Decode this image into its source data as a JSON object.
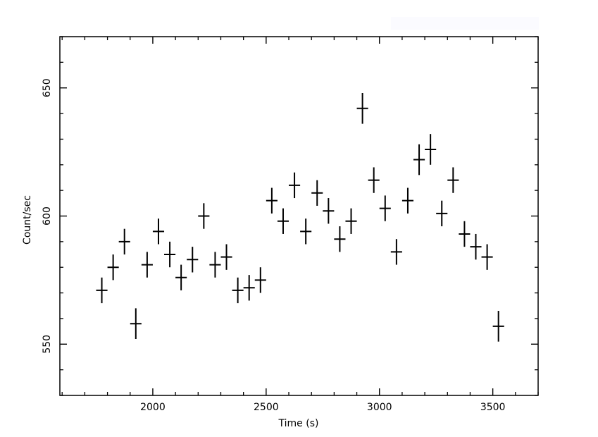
{
  "chart_data": {
    "type": "scatter",
    "title": "",
    "xlabel": "Time (s)",
    "ylabel": "Count/sec",
    "xlim": [
      1590,
      3700
    ],
    "ylim": [
      530,
      670
    ],
    "x_major_ticks": [
      2000,
      2500,
      3000,
      3500
    ],
    "x_tick_labels": [
      "2000",
      "2500",
      "3000",
      "3500"
    ],
    "x_minor_step": 100,
    "y_major_ticks": [
      550,
      600,
      650
    ],
    "y_tick_labels": [
      "550",
      "600",
      "650"
    ],
    "y_minor_step": 10,
    "grid": false,
    "legend": "none",
    "marker": "error-cross",
    "x_half_width": 25,
    "series": [
      {
        "points": [
          {
            "x": 1775,
            "y": 571,
            "err": 5
          },
          {
            "x": 1825,
            "y": 580,
            "err": 5
          },
          {
            "x": 1875,
            "y": 590,
            "err": 5
          },
          {
            "x": 1925,
            "y": 558,
            "err": 6
          },
          {
            "x": 1975,
            "y": 581,
            "err": 5
          },
          {
            "x": 2025,
            "y": 594,
            "err": 5
          },
          {
            "x": 2075,
            "y": 585,
            "err": 5
          },
          {
            "x": 2125,
            "y": 576,
            "err": 5
          },
          {
            "x": 2175,
            "y": 583,
            "err": 5
          },
          {
            "x": 2225,
            "y": 600,
            "err": 5
          },
          {
            "x": 2275,
            "y": 581,
            "err": 5
          },
          {
            "x": 2325,
            "y": 584,
            "err": 5
          },
          {
            "x": 2375,
            "y": 571,
            "err": 5
          },
          {
            "x": 2425,
            "y": 572,
            "err": 5
          },
          {
            "x": 2475,
            "y": 575,
            "err": 5
          },
          {
            "x": 2525,
            "y": 606,
            "err": 5
          },
          {
            "x": 2575,
            "y": 598,
            "err": 5
          },
          {
            "x": 2625,
            "y": 612,
            "err": 5
          },
          {
            "x": 2675,
            "y": 594,
            "err": 5
          },
          {
            "x": 2725,
            "y": 609,
            "err": 5
          },
          {
            "x": 2775,
            "y": 602,
            "err": 5
          },
          {
            "x": 2825,
            "y": 591,
            "err": 5
          },
          {
            "x": 2875,
            "y": 598,
            "err": 5
          },
          {
            "x": 2925,
            "y": 642,
            "err": 6
          },
          {
            "x": 2975,
            "y": 614,
            "err": 5
          },
          {
            "x": 3025,
            "y": 603,
            "err": 5
          },
          {
            "x": 3075,
            "y": 586,
            "err": 5
          },
          {
            "x": 3125,
            "y": 606,
            "err": 5
          },
          {
            "x": 3175,
            "y": 622,
            "err": 6
          },
          {
            "x": 3225,
            "y": 626,
            "err": 6
          },
          {
            "x": 3275,
            "y": 601,
            "err": 5
          },
          {
            "x": 3325,
            "y": 614,
            "err": 5
          },
          {
            "x": 3375,
            "y": 593,
            "err": 5
          },
          {
            "x": 3425,
            "y": 588,
            "err": 5
          },
          {
            "x": 3475,
            "y": 584,
            "err": 5
          },
          {
            "x": 3525,
            "y": 557,
            "err": 6
          }
        ]
      }
    ]
  }
}
